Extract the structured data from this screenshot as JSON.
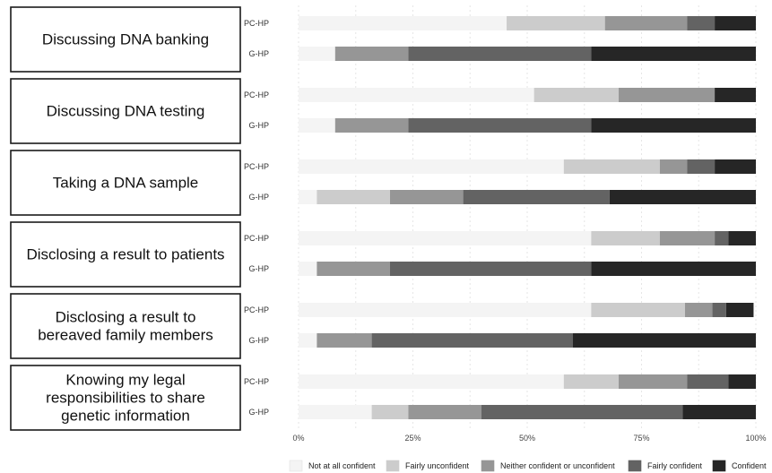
{
  "chart_data": {
    "type": "bar",
    "orientation": "horizontal",
    "stacked": true,
    "normalized_percent": true,
    "categories": [
      "Discussing DNA banking",
      "Discussing DNA testing",
      "Taking a DNA sample",
      "Disclosing a result to patients",
      "Disclosing a result to bereaved family members",
      "Knowing my legal responsibilities to share genetic information"
    ],
    "category_label_lines": [
      [
        "Discussing DNA banking"
      ],
      [
        "Discussing DNA testing"
      ],
      [
        "Taking a DNA sample"
      ],
      [
        "Disclosing a result to patients"
      ],
      [
        "Disclosing a result to",
        "bereaved family members"
      ],
      [
        "Knowing my legal",
        "responsibilities to share",
        "genetic information"
      ]
    ],
    "groups": [
      "PC-HP",
      "G-HP"
    ],
    "series": [
      {
        "name": "Not at all confident",
        "color": "#f4f4f4",
        "values": {
          "PC-HP": [
            45.5,
            51.5,
            58,
            64,
            64,
            58
          ],
          "G-HP": [
            8,
            8,
            4,
            4,
            4,
            16
          ]
        }
      },
      {
        "name": "Fairly unconfident",
        "color": "#cccccc",
        "values": {
          "PC-HP": [
            21.5,
            18.5,
            21,
            15,
            20.5,
            12
          ],
          "G-HP": [
            0,
            0,
            16,
            0,
            0,
            8
          ]
        }
      },
      {
        "name": "Neither confident or unconfident",
        "color": "#969696",
        "values": {
          "PC-HP": [
            18,
            21,
            6,
            12,
            6,
            15
          ],
          "G-HP": [
            16,
            16,
            16,
            16,
            12,
            16
          ]
        }
      },
      {
        "name": "Fairly confident",
        "color": "#636363",
        "values": {
          "PC-HP": [
            6,
            0,
            6,
            3,
            3,
            9
          ],
          "G-HP": [
            40,
            40,
            32,
            44,
            44,
            44
          ]
        }
      },
      {
        "name": "Confident",
        "color": "#262626",
        "values": {
          "PC-HP": [
            9,
            9,
            9,
            6,
            6,
            6
          ],
          "G-HP": [
            36,
            36,
            32,
            36,
            40,
            16
          ]
        }
      }
    ],
    "x_ticks": [
      "0%",
      "25%",
      "50%",
      "75%",
      "100%"
    ],
    "xlim": [
      0,
      100
    ],
    "grid": true,
    "legend_position": "bottom"
  }
}
